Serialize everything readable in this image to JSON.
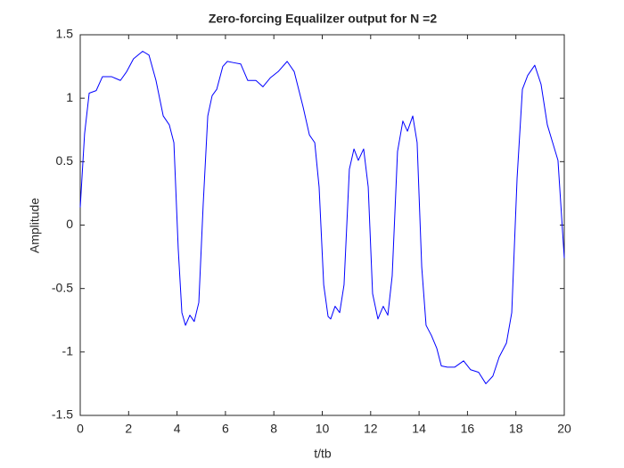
{
  "chart_data": {
    "type": "line",
    "title": "Zero-forcing Equalilzer output for N =2",
    "xlabel": "t/tb",
    "ylabel": "Amplitude",
    "color": "#0000ff",
    "x": [
      0,
      0.18,
      0.37,
      0.66,
      0.92,
      1.29,
      1.66,
      1.92,
      2.2,
      2.58,
      2.84,
      3.13,
      3.43,
      3.68,
      3.87,
      4.05,
      4.2,
      4.35,
      4.53,
      4.71,
      4.9,
      5.08,
      5.27,
      5.45,
      5.64,
      5.89,
      6.08,
      6.34,
      6.63,
      6.92,
      7.26,
      7.55,
      7.85,
      8.18,
      8.55,
      8.84,
      9.21,
      9.47,
      9.69,
      9.87,
      10.06,
      10.24,
      10.35,
      10.53,
      10.72,
      10.9,
      11.12,
      11.31,
      11.49,
      11.71,
      11.9,
      12.08,
      12.3,
      12.52,
      12.71,
      12.89,
      13.11,
      13.33,
      13.52,
      13.74,
      13.92,
      14.11,
      14.29,
      14.51,
      14.73,
      14.92,
      15.17,
      15.47,
      15.84,
      16.13,
      16.46,
      16.76,
      17.05,
      17.31,
      17.61,
      17.83,
      18.05,
      18.27,
      18.49,
      18.78,
      19.04,
      19.3,
      19.52,
      19.74,
      20
    ],
    "values": [
      0.14,
      0.72,
      1.04,
      1.06,
      1.17,
      1.17,
      1.14,
      1.21,
      1.31,
      1.37,
      1.34,
      1.14,
      0.86,
      0.79,
      0.65,
      -0.19,
      -0.69,
      -0.79,
      -0.71,
      -0.76,
      -0.61,
      0.16,
      0.86,
      1.02,
      1.07,
      1.25,
      1.29,
      1.28,
      1.27,
      1.14,
      1.14,
      1.09,
      1.16,
      1.21,
      1.29,
      1.21,
      0.93,
      0.71,
      0.65,
      0.3,
      -0.47,
      -0.72,
      -0.74,
      -0.64,
      -0.69,
      -0.47,
      0.44,
      0.6,
      0.51,
      0.6,
      0.3,
      -0.54,
      -0.74,
      -0.64,
      -0.71,
      -0.4,
      0.58,
      0.82,
      0.74,
      0.86,
      0.65,
      -0.33,
      -0.79,
      -0.87,
      -0.97,
      -1.11,
      -1.12,
      -1.12,
      -1.07,
      -1.14,
      -1.16,
      -1.25,
      -1.19,
      -1.04,
      -0.93,
      -0.69,
      0.37,
      1.07,
      1.18,
      1.26,
      1.11,
      0.79,
      0.65,
      0.51,
      -0.26
    ],
    "xlim": [
      0,
      20
    ],
    "xticks": [
      0,
      2,
      4,
      6,
      8,
      10,
      12,
      14,
      16,
      18,
      20
    ],
    "ylim": [
      -1.5,
      1.5
    ],
    "yticks": [
      -1.5,
      -1,
      -0.5,
      0,
      0.5,
      1,
      1.5
    ],
    "grid": false
  }
}
